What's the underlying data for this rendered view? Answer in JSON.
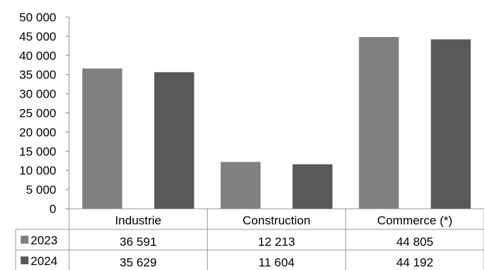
{
  "chart_data": {
    "type": "bar",
    "categories": [
      "Industrie",
      "Construction",
      "Commerce (*)"
    ],
    "series": [
      {
        "name": "2023",
        "values": [
          36591,
          12213,
          44805
        ],
        "labels": [
          "36 591",
          "12 213",
          "44 805"
        ],
        "color": "#808080"
      },
      {
        "name": "2024",
        "values": [
          35629,
          11604,
          44192
        ],
        "labels": [
          "35 629",
          "11 604",
          "44 192"
        ],
        "color": "#595959"
      }
    ],
    "ylim": [
      0,
      50000
    ],
    "yticks": [
      0,
      5000,
      10000,
      15000,
      20000,
      25000,
      30000,
      35000,
      40000,
      45000,
      50000
    ],
    "ytick_labels": [
      "0",
      "5 000",
      "10 000",
      "15 000",
      "20 000",
      "25 000",
      "30 000",
      "35 000",
      "40 000",
      "45 000",
      "50 000"
    ],
    "grid": false,
    "legend": "data-table",
    "title": "",
    "xlabel": "",
    "ylabel": ""
  }
}
